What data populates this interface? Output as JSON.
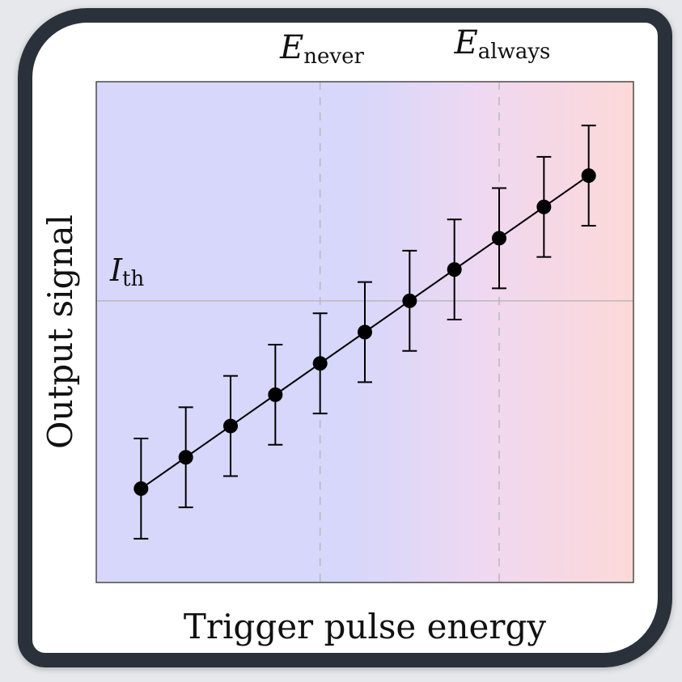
{
  "chart_data": {
    "type": "scatter",
    "xlabel": "Trigger pulse energy",
    "ylabel": "Output signal",
    "x": [
      1,
      2,
      3,
      4,
      5,
      6,
      7,
      8,
      9,
      10,
      11
    ],
    "y": [
      1.5,
      2.0,
      2.5,
      3.0,
      3.5,
      4.0,
      4.5,
      5.0,
      5.5,
      6.0,
      6.5
    ],
    "error": 0.8,
    "xlim": [
      0,
      12
    ],
    "ylim": [
      0,
      8
    ],
    "grid": false,
    "connected": true,
    "threshold_line": {
      "label_main": "I",
      "label_sub": "th",
      "y": 4.5
    },
    "markers": [
      {
        "label_main": "E",
        "label_sub": "never",
        "x": 5
      },
      {
        "label_main": "E",
        "label_sub": "always",
        "x": 9
      }
    ],
    "background_gradient": {
      "from": "#d6d7fb",
      "to": "#fdd9d8"
    },
    "colors": {
      "points": "#000000",
      "plot_border": "#4a4a4a",
      "reference_lines": "#b9b9b9"
    }
  }
}
